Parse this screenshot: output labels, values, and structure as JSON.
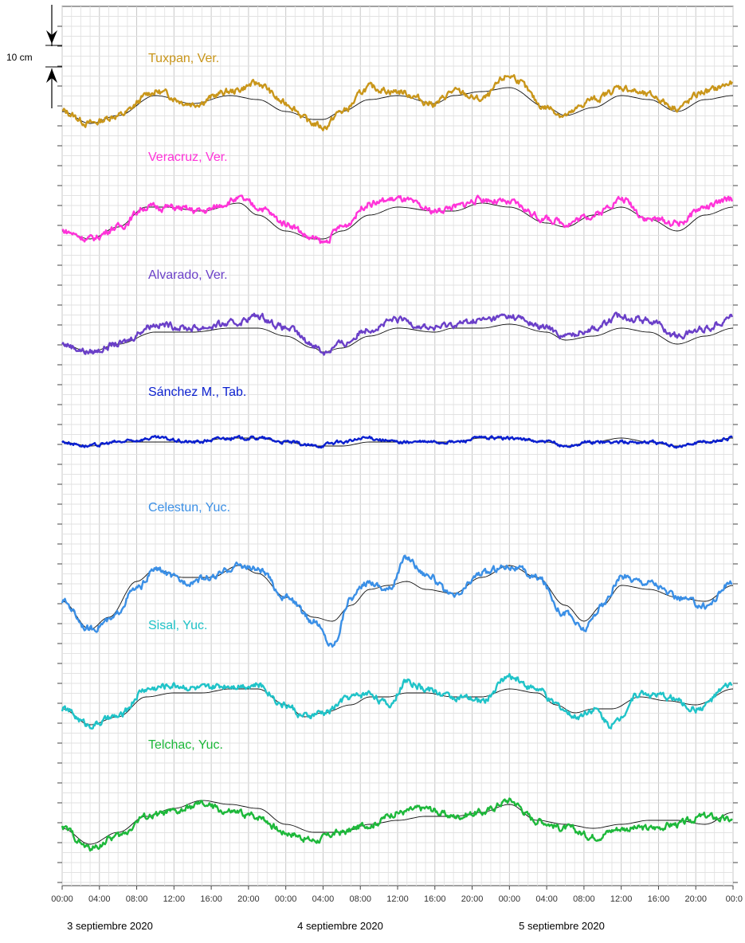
{
  "chart_data": {
    "type": "line",
    "title": "",
    "xlabel": "",
    "ylabel": "",
    "x_tick_labels": [
      "00:00",
      "04:00",
      "08:00",
      "12:00",
      "16:00",
      "20:00",
      "00:00",
      "04:00",
      "08:00",
      "12:00",
      "16:00",
      "20:00",
      "00:00",
      "04:00",
      "08:00",
      "12:00",
      "16:00",
      "20:00",
      "00:0"
    ],
    "x_range_hours": [
      0,
      72
    ],
    "date_labels": [
      "3 septiembre 2020",
      "4 septiembre 2020",
      "5 septiembre 2020"
    ],
    "scale_bar": {
      "label": "10 cm",
      "value_cm": 10
    },
    "grid": true,
    "series_note_units": "cm (offsets relative to each station trace)",
    "stations": [
      {
        "name": "Tuxpan, Ver.",
        "color": "#C9961A",
        "offset_cm": 0,
        "points_hours": [
          0,
          3,
          6,
          10,
          14,
          18,
          21,
          24,
          27,
          28,
          30,
          33,
          36,
          40,
          42,
          45,
          48,
          52,
          54,
          57,
          60,
          63,
          66,
          69,
          72
        ],
        "observed_cm": [
          -2,
          -5,
          -3,
          3,
          0,
          3,
          5,
          0,
          -5,
          -6,
          -2,
          4,
          3,
          0,
          3,
          1,
          7,
          -1,
          -3,
          1,
          4,
          2,
          -1,
          3,
          5
        ],
        "predicted_cm": [
          -2,
          -5,
          -3,
          2,
          0,
          2,
          1,
          -2,
          -4,
          -4,
          -2,
          1,
          2,
          0,
          2,
          3,
          4,
          -1,
          -3,
          -1,
          2,
          1,
          -2,
          1,
          2
        ]
      },
      {
        "name": "Veracruz, Ver.",
        "color": "#FF33D9",
        "offset_cm": 0,
        "points_hours": [
          0,
          3,
          6,
          9,
          11,
          15,
          19,
          21,
          24,
          27,
          28,
          30,
          33,
          36,
          40,
          42,
          45,
          48,
          52,
          54,
          57,
          60,
          63,
          66,
          69,
          72
        ],
        "observed_cm": [
          -3,
          -5,
          -2,
          3,
          3,
          2,
          5,
          3,
          -1,
          -5,
          -6,
          -2,
          4,
          5,
          2,
          3,
          5,
          4,
          0,
          -1,
          1,
          5,
          0,
          -1,
          3,
          5
        ],
        "predicted_cm": [
          -3,
          -5,
          -2,
          3,
          3,
          2,
          4,
          1,
          -3,
          -5,
          -5,
          -3,
          1,
          3,
          2,
          2,
          4,
          3,
          -1,
          -2,
          1,
          3,
          0,
          -3,
          1,
          3
        ]
      },
      {
        "name": "Alvarado, Ver.",
        "color": "#6A3FC8",
        "offset_cm": 0,
        "points_hours": [
          0,
          3,
          6,
          10,
          14,
          18,
          21,
          24,
          27,
          28,
          30,
          33,
          36,
          40,
          42,
          45,
          48,
          52,
          54,
          57,
          60,
          63,
          66,
          69,
          72
        ],
        "observed_cm": [
          -2,
          -4,
          -2,
          3,
          2,
          3,
          5,
          2,
          -2,
          -4,
          -2,
          2,
          4,
          2,
          3,
          4,
          5,
          2,
          0,
          2,
          5,
          4,
          0,
          2,
          5
        ],
        "predicted_cm": [
          -2,
          -4,
          -2,
          1,
          1,
          2,
          2,
          0,
          -3,
          -4,
          -3,
          0,
          2,
          1,
          2,
          2,
          3,
          1,
          -1,
          0,
          2,
          1,
          -2,
          0,
          2
        ]
      },
      {
        "name": "Sánchez M., Tab.",
        "color": "#0A1FD0",
        "offset_cm": 0,
        "points_hours": [
          0,
          3,
          6,
          10,
          14,
          18,
          21,
          24,
          27,
          30,
          33,
          36,
          40,
          42,
          45,
          48,
          52,
          54,
          57,
          60,
          63,
          66,
          69,
          72
        ],
        "observed_cm": [
          0,
          -1,
          0,
          1,
          0,
          1,
          1,
          0,
          -1,
          0,
          1,
          0,
          0,
          0,
          1,
          1,
          0,
          -1,
          0,
          0,
          0,
          -1,
          0,
          1
        ],
        "predicted_cm": [
          0,
          -1,
          0,
          0,
          0,
          1,
          1,
          0,
          -1,
          -1,
          0,
          0,
          0,
          0,
          1,
          1,
          0,
          -1,
          0,
          1,
          0,
          -1,
          0,
          1
        ]
      },
      {
        "name": "Celestun, Yuc.",
        "color": "#3A8FE6",
        "offset_cm": 0,
        "points_hours": [
          0,
          3,
          5,
          8,
          10,
          13,
          16,
          19,
          21,
          24,
          27,
          29,
          31,
          33,
          35,
          37,
          39,
          42,
          45,
          48,
          51,
          54,
          56,
          58,
          60,
          63,
          66,
          69,
          72
        ],
        "observed_cm": [
          -3,
          -10,
          -8,
          0,
          5,
          2,
          3,
          6,
          5,
          -2,
          -8,
          -14,
          -2,
          2,
          0,
          8,
          4,
          -2,
          4,
          6,
          3,
          -6,
          -10,
          -4,
          3,
          2,
          -2,
          -4,
          2
        ],
        "predicted_cm": [
          -3,
          -10,
          -7,
          2,
          5,
          3,
          3,
          6,
          4,
          -2,
          -7,
          -8,
          -4,
          0,
          1,
          2,
          0,
          -1,
          3,
          6,
          3,
          -4,
          -8,
          -4,
          1,
          0,
          -2,
          -3,
          1
        ]
      },
      {
        "name": "Sisal, Yuc.",
        "color": "#1FC3C8",
        "offset_cm": 0,
        "points_hours": [
          0,
          3,
          6,
          9,
          12,
          15,
          18,
          21,
          24,
          26,
          28,
          31,
          33,
          35,
          37,
          39,
          42,
          45,
          48,
          51,
          53,
          55,
          57,
          59,
          62,
          65,
          68,
          72
        ],
        "observed_cm": [
          -2,
          -6,
          -4,
          3,
          4,
          3,
          4,
          4,
          -1,
          -4,
          -3,
          1,
          2,
          -1,
          5,
          3,
          1,
          0,
          6,
          3,
          -1,
          -4,
          -2,
          -6,
          2,
          1,
          -2,
          4
        ],
        "predicted_cm": [
          -2,
          -6,
          -4,
          1,
          2,
          2,
          3,
          3,
          -1,
          -4,
          -3,
          -1,
          1,
          1,
          2,
          2,
          1,
          1,
          3,
          2,
          -1,
          -3,
          -2,
          -2,
          1,
          0,
          -1,
          3
        ]
      },
      {
        "name": "Telchac, Yuc.",
        "color": "#1DB83A",
        "offset_cm": 0,
        "points_hours": [
          0,
          3,
          6,
          9,
          12,
          15,
          18,
          21,
          24,
          27,
          30,
          33,
          36,
          39,
          42,
          45,
          48,
          51,
          54,
          57,
          60,
          63,
          66,
          69,
          72
        ],
        "observed_cm": [
          -2,
          -7,
          -4,
          1,
          2,
          4,
          2,
          1,
          -3,
          -5,
          -3,
          -1,
          2,
          3,
          1,
          2,
          5,
          0,
          -2,
          -4,
          -2,
          -2,
          -1,
          1,
          0
        ],
        "predicted_cm": [
          -2,
          -6,
          -3,
          1,
          3,
          5,
          4,
          3,
          -1,
          -3,
          -3,
          -1,
          0,
          1,
          1,
          2,
          4,
          0,
          -1,
          -2,
          -1,
          0,
          0,
          -1,
          2
        ]
      }
    ]
  }
}
